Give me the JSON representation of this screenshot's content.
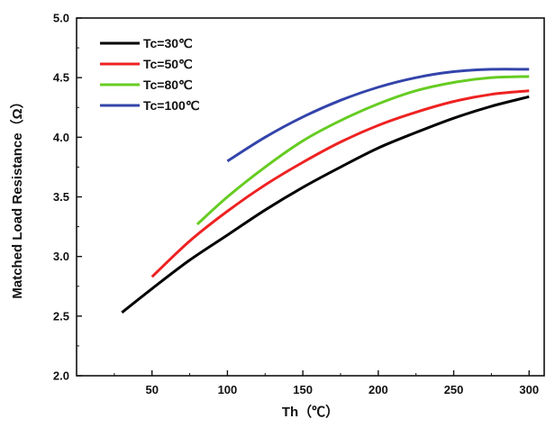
{
  "chart_data": {
    "type": "line",
    "title": "",
    "xlabel": "Th（℃）",
    "ylabel": "Matched Load Resistance（Ω）",
    "xlim": [
      0,
      310
    ],
    "ylim": [
      2.0,
      5.0
    ],
    "x_ticks": [
      50,
      100,
      150,
      200,
      250,
      300
    ],
    "y_ticks": [
      2.0,
      2.5,
      3.0,
      3.5,
      4.0,
      4.5,
      5.0
    ],
    "y_tick_labels": [
      "2.0",
      "2.5",
      "3.0",
      "3.5",
      "4.0",
      "4.5",
      "5.0"
    ],
    "grid": false,
    "legend_position": "top-left",
    "series": [
      {
        "name": "Tc=30℃",
        "color": "#000000",
        "x": [
          30,
          50,
          75,
          100,
          125,
          150,
          175,
          200,
          225,
          250,
          275,
          300
        ],
        "y": [
          2.53,
          2.73,
          2.97,
          3.18,
          3.39,
          3.58,
          3.75,
          3.91,
          4.04,
          4.16,
          4.26,
          4.34
        ]
      },
      {
        "name": "Tc=50℃",
        "color": "#ee2222",
        "x": [
          50,
          75,
          100,
          125,
          150,
          175,
          200,
          225,
          250,
          275,
          300
        ],
        "y": [
          2.83,
          3.13,
          3.38,
          3.6,
          3.79,
          3.96,
          4.1,
          4.21,
          4.3,
          4.36,
          4.39
        ]
      },
      {
        "name": "Tc=80℃",
        "color": "#66cc22",
        "x": [
          80,
          100,
          125,
          150,
          175,
          200,
          225,
          250,
          275,
          300
        ],
        "y": [
          3.27,
          3.5,
          3.75,
          3.97,
          4.14,
          4.28,
          4.39,
          4.46,
          4.5,
          4.51
        ]
      },
      {
        "name": "Tc=100℃",
        "color": "#3344aa",
        "x": [
          100,
          125,
          150,
          175,
          200,
          225,
          250,
          275,
          300
        ],
        "y": [
          3.8,
          4.0,
          4.17,
          4.31,
          4.42,
          4.5,
          4.55,
          4.57,
          4.57
        ]
      }
    ]
  }
}
